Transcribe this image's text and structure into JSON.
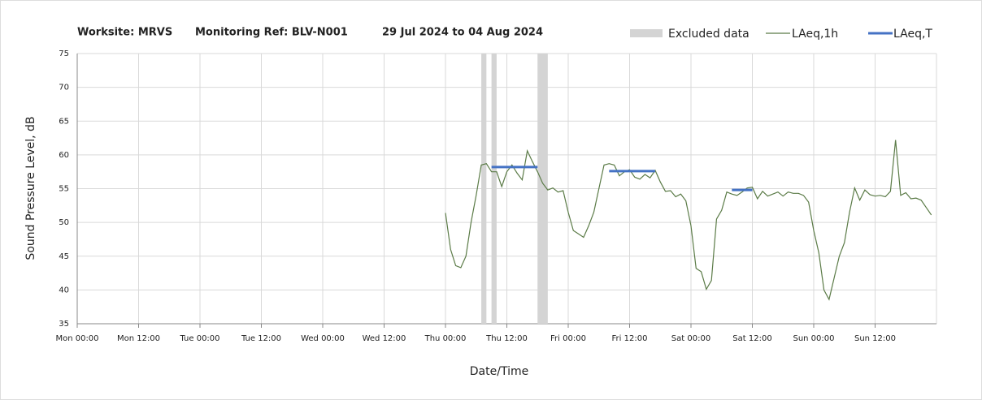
{
  "chart_data": {
    "type": "line",
    "title_parts": [
      "Worksite: MRVS",
      "Monitoring Ref: BLV-N001",
      "29 Jul 2024 to 04 Aug 2024"
    ],
    "xlabel": "Date/Time",
    "ylabel": "Sound Pressure Level, dB",
    "xlim": [
      0,
      168
    ],
    "xticks": [
      {
        "value": 0,
        "label": "Mon 00:00"
      },
      {
        "value": 12,
        "label": "Mon 12:00"
      },
      {
        "value": 24,
        "label": "Tue 00:00"
      },
      {
        "value": 36,
        "label": "Tue 12:00"
      },
      {
        "value": 48,
        "label": "Wed 00:00"
      },
      {
        "value": 60,
        "label": "Wed 12:00"
      },
      {
        "value": 72,
        "label": "Thu 00:00"
      },
      {
        "value": 84,
        "label": "Thu 12:00"
      },
      {
        "value": 96,
        "label": "Fri 00:00"
      },
      {
        "value": 108,
        "label": "Fri 12:00"
      },
      {
        "value": 120,
        "label": "Sat 00:00"
      },
      {
        "value": 132,
        "label": "Sat 12:00"
      },
      {
        "value": 144,
        "label": "Sun 00:00"
      },
      {
        "value": 156,
        "label": "Sun 12:00"
      }
    ],
    "ylim": [
      35,
      75
    ],
    "yticks": [
      35,
      40,
      45,
      50,
      55,
      60,
      65,
      70,
      75
    ],
    "grid": true,
    "excluded": {
      "name": "Excluded data",
      "color": "#d4d4d4",
      "ranges": [
        [
          79,
          80
        ],
        [
          81,
          82
        ],
        [
          90,
          92
        ]
      ]
    },
    "series": [
      {
        "name": "LAeq,1h",
        "color": "#5b7b47",
        "x": [
          72,
          73,
          74,
          75,
          76,
          77,
          78,
          79,
          80,
          81,
          82,
          83,
          84,
          85,
          86,
          87,
          88,
          89,
          90,
          91,
          92,
          93,
          94,
          95,
          96,
          97,
          98,
          99,
          100,
          101,
          102,
          103,
          104,
          105,
          106,
          107,
          108,
          109,
          110,
          111,
          112,
          113,
          114,
          115,
          116,
          117,
          118,
          119,
          120,
          121,
          122,
          123,
          124,
          125,
          126,
          127,
          128,
          129,
          130,
          131,
          132,
          133,
          134,
          135,
          136,
          137,
          138,
          139,
          140,
          141,
          142,
          143,
          144,
          145,
          146,
          147,
          148,
          149,
          150,
          151,
          152,
          153,
          154,
          155,
          156,
          157,
          158,
          159,
          160,
          161,
          162,
          163,
          164,
          165,
          166,
          167
        ],
        "values": [
          51.4,
          46,
          43.6,
          43.3,
          45,
          50,
          54,
          58.5,
          58.7,
          57.5,
          57.5,
          55.3,
          57.5,
          58.5,
          57.3,
          56.3,
          60.6,
          59,
          57.5,
          55.8,
          54.8,
          55.1,
          54.5,
          54.7,
          51.5,
          48.8,
          48.3,
          47.8,
          49.5,
          51.5,
          55,
          58.5,
          58.7,
          58.5,
          56.9,
          57.5,
          57.8,
          56.7,
          56.4,
          57.1,
          56.6,
          57.7,
          56,
          54.6,
          54.7,
          53.8,
          54.2,
          53.2,
          49.5,
          43.2,
          42.7,
          40.1,
          41.4,
          50.5,
          51.8,
          54.5,
          54.2,
          54,
          54.5,
          55.1,
          55.2,
          53.5,
          54.6,
          53.9,
          54.2,
          54.5,
          53.9,
          54.5,
          54.3,
          54.3,
          54,
          53,
          48.8,
          45.5,
          40,
          38.6,
          41.8,
          45,
          47,
          51.5,
          55.1,
          53.3,
          54.8,
          54.1,
          53.9,
          54,
          53.8,
          54.6,
          62.2,
          54,
          54.4,
          53.5,
          53.6,
          53.3,
          52.2,
          51.1
        ]
      }
    ],
    "periods": {
      "name": "LAeq,T",
      "color": "#4472c4",
      "items": [
        {
          "start": 81,
          "end": 90,
          "value": 58.2
        },
        {
          "start": 104,
          "end": 113,
          "value": 57.6
        },
        {
          "start": 128,
          "end": 132,
          "value": 54.8
        }
      ]
    }
  }
}
